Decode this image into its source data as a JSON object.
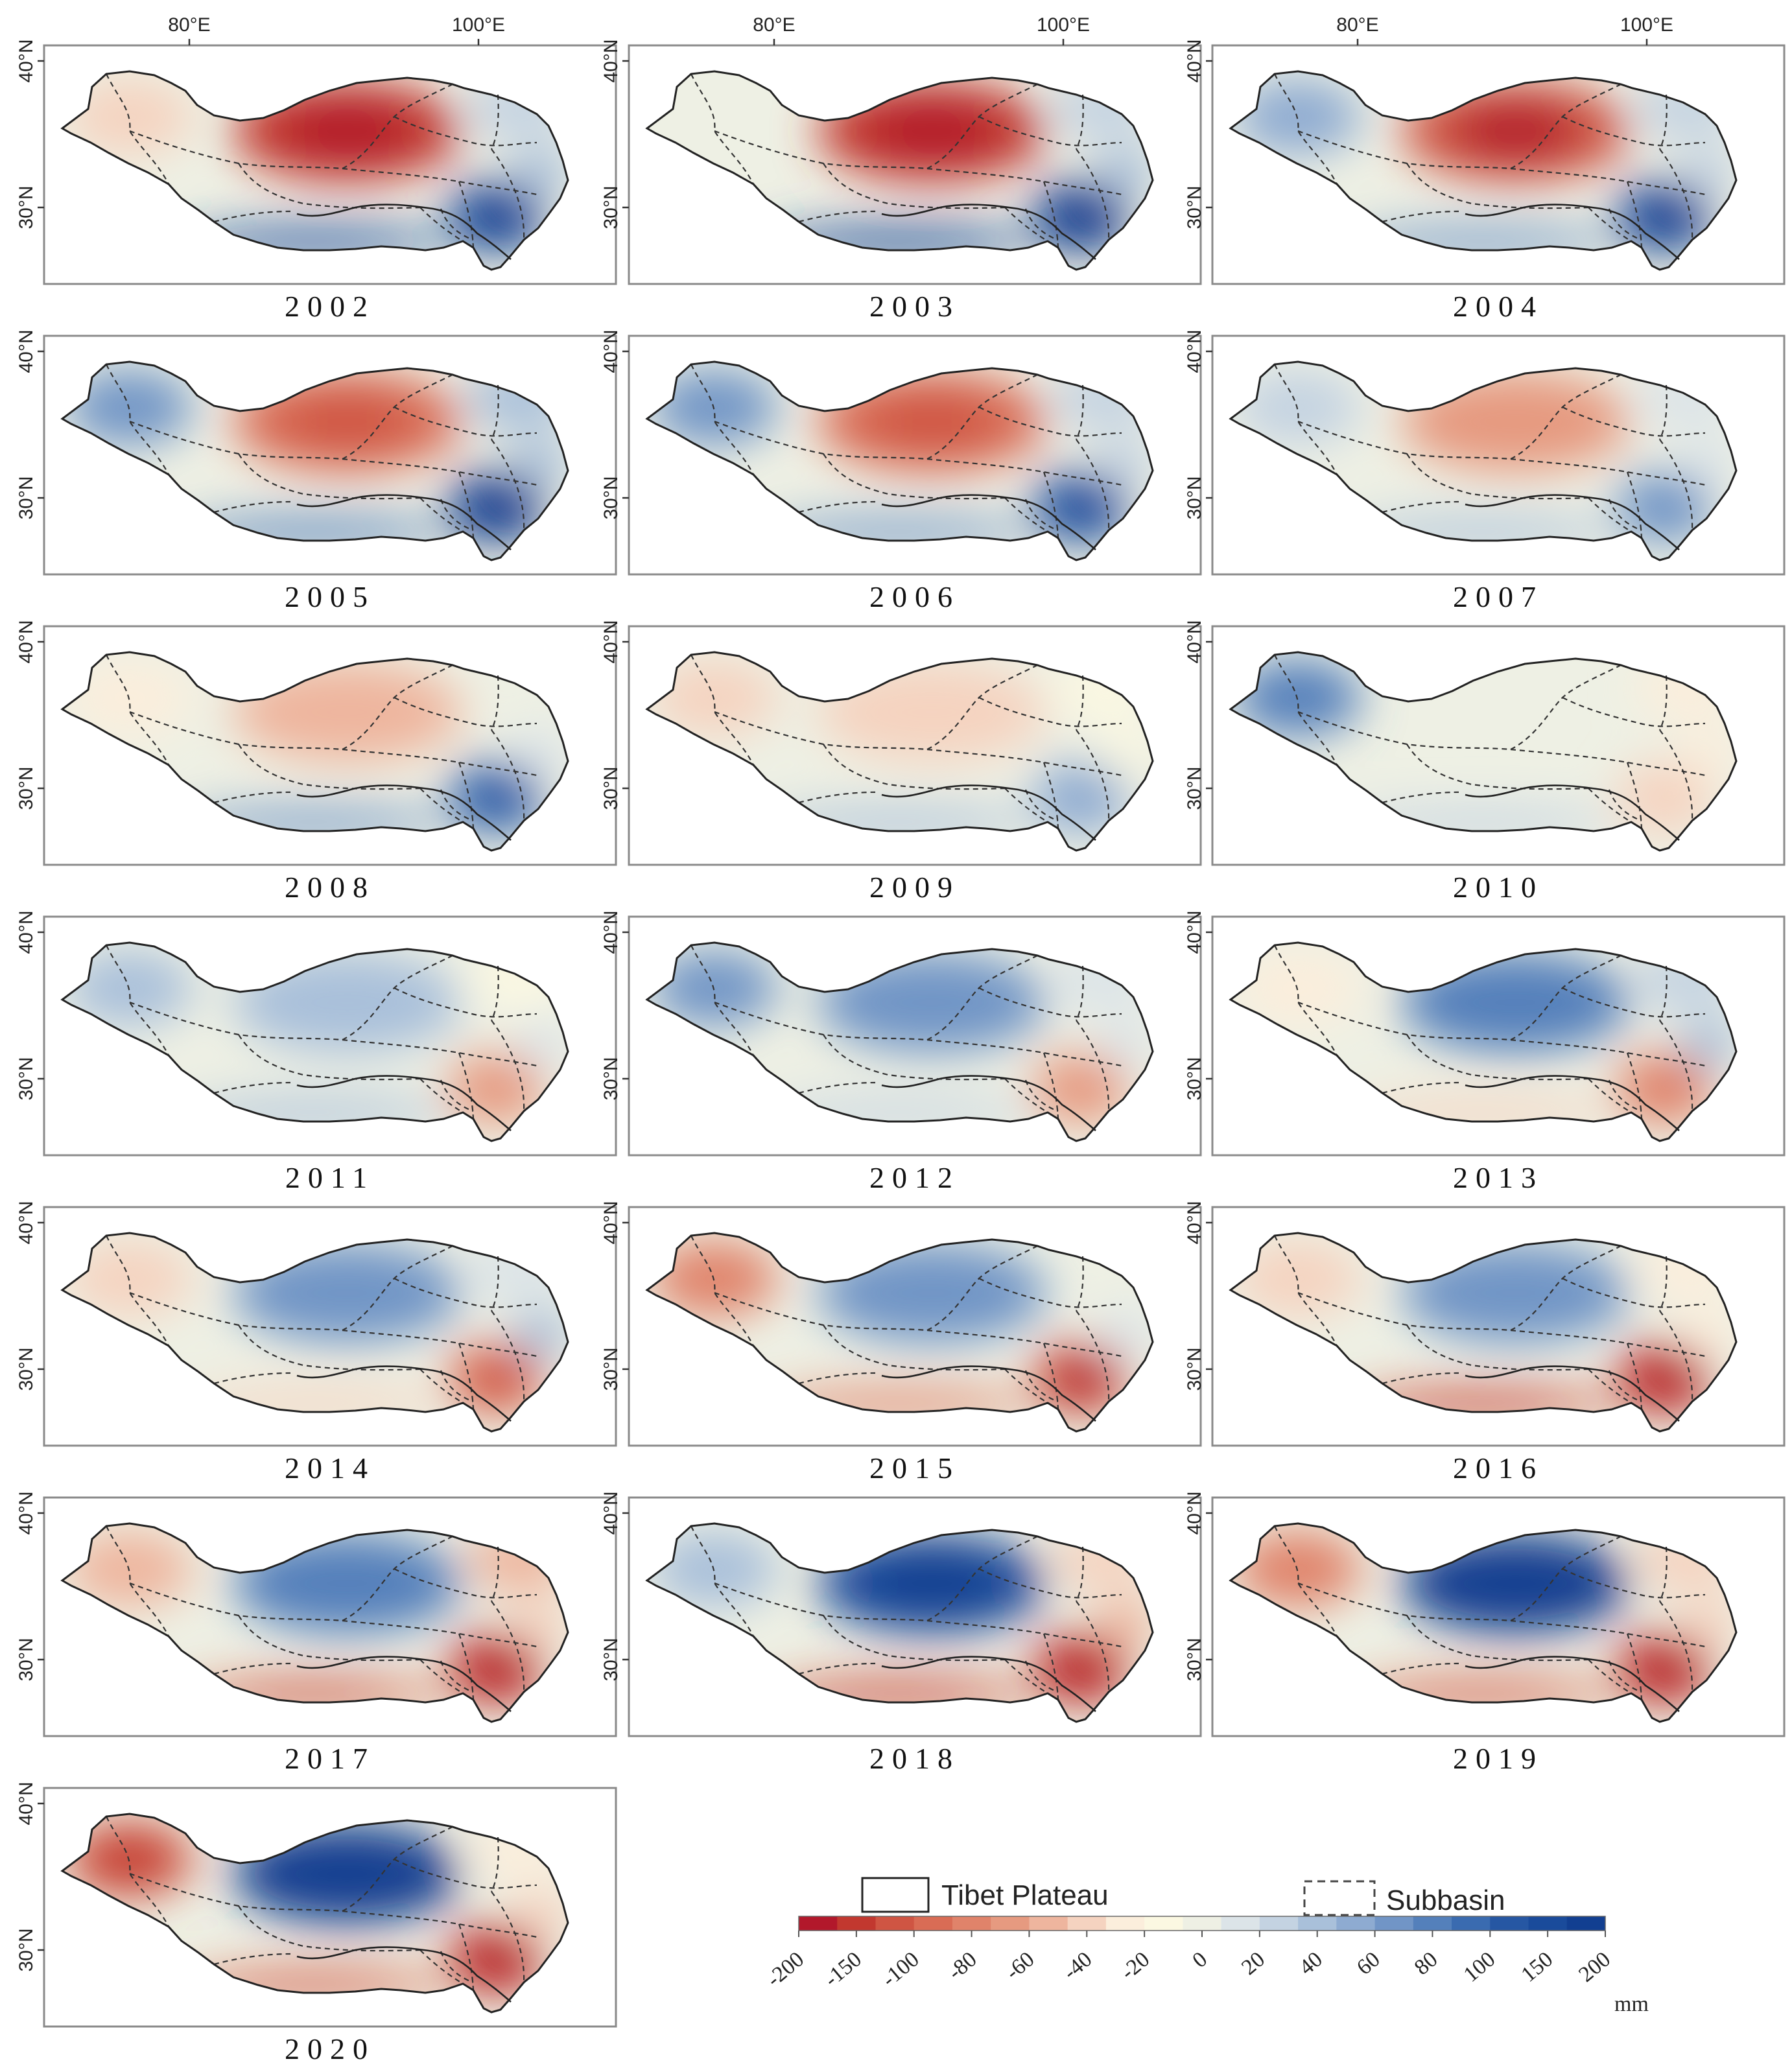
{
  "figure": {
    "lon_ticks": [
      "80°E",
      "100°E"
    ],
    "lat_ticks": [
      "40°N",
      "30°N"
    ],
    "panels": [
      {
        "year": "2002",
        "pattern": {
          "central": -0.9,
          "southeast": 0.9,
          "south": 0.8,
          "west": -0.3,
          "northeast": 0.2,
          "east_pocket": 0.3
        }
      },
      {
        "year": "2003",
        "pattern": {
          "central": -0.9,
          "southeast": 0.95,
          "south": 0.85,
          "west": 0.0,
          "northeast": 0.2,
          "east_pocket": 0.3
        }
      },
      {
        "year": "2004",
        "pattern": {
          "central": -0.85,
          "southeast": 0.9,
          "south": 0.5,
          "west": 0.35,
          "northeast": 0.2,
          "east_pocket": 0.2
        }
      },
      {
        "year": "2005",
        "pattern": {
          "central": -0.7,
          "southeast": 0.95,
          "south": 0.6,
          "west": 0.5,
          "northeast": 0.25,
          "east_pocket": 0.3
        }
      },
      {
        "year": "2006",
        "pattern": {
          "central": -0.7,
          "southeast": 0.75,
          "south": 0.5,
          "west": 0.5,
          "northeast": 0.2,
          "east_pocket": 0.2
        }
      },
      {
        "year": "2007",
        "pattern": {
          "central": -0.55,
          "southeast": 0.5,
          "south": 0.3,
          "west": 0.15,
          "northeast": 0.1,
          "east_pocket": 0.1
        }
      },
      {
        "year": "2008",
        "pattern": {
          "central": -0.45,
          "southeast": 0.7,
          "south": 0.5,
          "west": -0.2,
          "northeast": 0.0,
          "east_pocket": 0.1
        }
      },
      {
        "year": "2009",
        "pattern": {
          "central": -0.3,
          "southeast": 0.4,
          "south": 0.3,
          "west": -0.3,
          "northeast": -0.1,
          "east_pocket": -0.15
        }
      },
      {
        "year": "2010",
        "pattern": {
          "central": 0.0,
          "southeast": -0.3,
          "south": 0.2,
          "west": 0.6,
          "northeast": -0.2,
          "east_pocket": -0.2
        }
      },
      {
        "year": "2011",
        "pattern": {
          "central": 0.25,
          "southeast": -0.5,
          "south": 0.3,
          "west": 0.3,
          "northeast": -0.1,
          "east_pocket": 0.1
        }
      },
      {
        "year": "2012",
        "pattern": {
          "central": 0.45,
          "southeast": -0.5,
          "south": 0.15,
          "west": 0.5,
          "northeast": 0.1,
          "east_pocket": 0.1
        }
      },
      {
        "year": "2013",
        "pattern": {
          "central": 0.55,
          "southeast": -0.6,
          "south": -0.3,
          "west": -0.2,
          "northeast": 0.15,
          "east_pocket": 0.3
        }
      },
      {
        "year": "2014",
        "pattern": {
          "central": 0.5,
          "southeast": -0.7,
          "south": -0.3,
          "west": -0.3,
          "northeast": 0.1,
          "east_pocket": 0.3
        }
      },
      {
        "year": "2015",
        "pattern": {
          "central": 0.5,
          "southeast": -0.85,
          "south": -0.6,
          "west": -0.6,
          "northeast": 0.0,
          "east_pocket": 0.1
        }
      },
      {
        "year": "2016",
        "pattern": {
          "central": 0.45,
          "southeast": -0.9,
          "south": -0.8,
          "west": -0.35,
          "northeast": -0.2,
          "east_pocket": -0.2
        }
      },
      {
        "year": "2017",
        "pattern": {
          "central": 0.6,
          "southeast": -0.9,
          "south": -0.75,
          "west": -0.45,
          "northeast": -0.45,
          "east_pocket": -0.3
        }
      },
      {
        "year": "2018",
        "pattern": {
          "central": 0.85,
          "southeast": -0.9,
          "south": -0.8,
          "west": 0.3,
          "northeast": -0.35,
          "east_pocket": -0.4
        }
      },
      {
        "year": "2019",
        "pattern": {
          "central": 0.95,
          "southeast": -0.9,
          "south": -0.7,
          "west": -0.6,
          "northeast": -0.3,
          "east_pocket": -0.3
        }
      },
      {
        "year": "2020",
        "pattern": {
          "central": 0.95,
          "southeast": -0.9,
          "south": -0.7,
          "west": -0.8,
          "northeast": -0.2,
          "east_pocket": -0.3
        }
      }
    ]
  },
  "legend": {
    "tibet_plateau_label": "Tibet Plateau",
    "subbasin_label": "Subbasin",
    "unit": "mm",
    "colorbar_ticks": [
      "-200",
      "-150",
      "-100",
      "-80",
      "-60",
      "-40",
      "-20",
      "0",
      "20",
      "40",
      "60",
      "80",
      "100",
      "150",
      "200"
    ],
    "colors": [
      "#b2182b",
      "#c2382f",
      "#cf5543",
      "#d96c55",
      "#e0836a",
      "#e69a80",
      "#eeb59e",
      "#f5d3c0",
      "#fbeedc",
      "#fbf8e2",
      "#eef0e4",
      "#dce4e8",
      "#c4d3e2",
      "#a9c0da",
      "#8eabd1",
      "#7195c6",
      "#5480bb",
      "#3a6bb0",
      "#2657a3",
      "#1a4b9b",
      "#123f91"
    ]
  }
}
